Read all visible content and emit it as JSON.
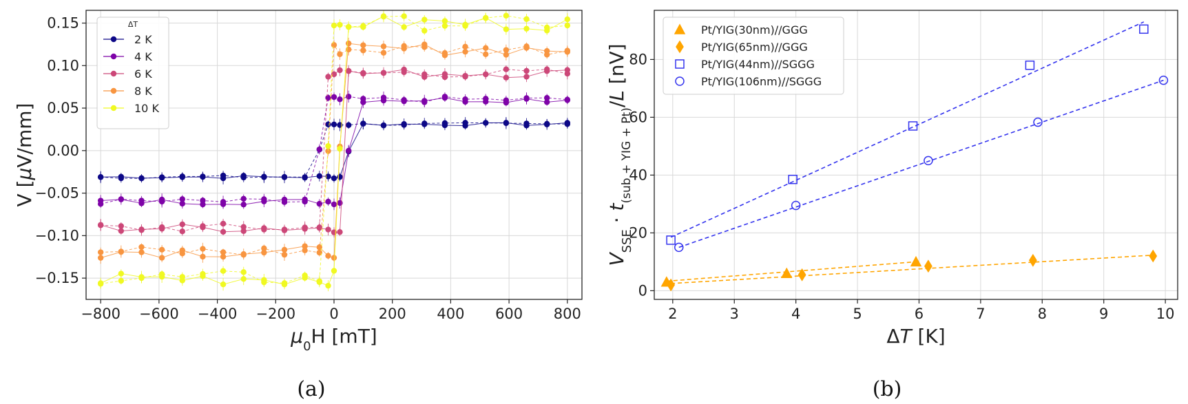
{
  "chart_data": [
    {
      "type": "line",
      "panel": "(a)",
      "xlabel": "μ0H [mT]",
      "ylabel": "V [μV/mm]",
      "xlim": [
        -850,
        850
      ],
      "ylim": [
        -0.175,
        0.165
      ],
      "xticks": [
        -800,
        -600,
        -400,
        -200,
        0,
        200,
        400,
        600,
        800
      ],
      "xtick_labels": [
        "−800",
        "−600",
        "−400",
        "−200",
        "0",
        "200",
        "400",
        "600",
        "800"
      ],
      "yticks": [
        -0.15,
        -0.1,
        -0.05,
        0.0,
        0.05,
        0.1,
        0.15
      ],
      "ytick_labels": [
        "−0.15",
        "−0.10",
        "−0.05",
        "0.00",
        "0.05",
        "0.10",
        "0.15"
      ],
      "grid": true,
      "legend_title": "ΔT",
      "legend_position": "upper-left",
      "x": [
        -800,
        -730,
        -660,
        -590,
        -520,
        -450,
        -380,
        -310,
        -240,
        -170,
        -100,
        -50,
        -20,
        0,
        20,
        50,
        100,
        170,
        240,
        310,
        380,
        450,
        520,
        590,
        660,
        730,
        800
      ],
      "series": [
        {
          "name": "2 K",
          "color": "#0d0887",
          "saturation": 0.031,
          "switch_width": 60
        },
        {
          "name": "4 K",
          "color": "#7e03a8",
          "saturation": 0.06,
          "switch_width": 45
        },
        {
          "name": "6 K",
          "color": "#cc4778",
          "saturation": 0.091,
          "switch_width": 35
        },
        {
          "name": "8 K",
          "color": "#f89540",
          "saturation": 0.119,
          "switch_width": 30
        },
        {
          "name": "10 K",
          "color": "#f0f921",
          "saturation": 0.15,
          "switch_width": 25
        }
      ]
    },
    {
      "type": "scatter",
      "panel": "(b)",
      "xlabel": "ΔT [K]",
      "ylabel": "V_SSE · t_(sub + YIG + Pt) / L [nV]",
      "xlim": [
        1.7,
        10.2
      ],
      "ylim": [
        -3,
        97
      ],
      "xticks": [
        2,
        3,
        4,
        5,
        6,
        7,
        8,
        9,
        10
      ],
      "yticks": [
        0,
        20,
        40,
        60,
        80
      ],
      "grid": true,
      "legend_position": "upper-left",
      "series": [
        {
          "name": "Pt/YIG(30nm)//GGG",
          "marker": "triangle",
          "filled": true,
          "color": "#ffa500",
          "x": [
            1.9,
            3.85,
            5.95
          ],
          "y": [
            3.0,
            6.0,
            10.0
          ],
          "fit": [
            [
              1.9,
              3.3
            ],
            [
              5.95,
              10.0
            ]
          ]
        },
        {
          "name": "Pt/YIG(65nm)//GGG",
          "marker": "diamond",
          "filled": true,
          "color": "#ffa500",
          "x": [
            1.97,
            4.1,
            6.15,
            7.85,
            9.8
          ],
          "y": [
            2.0,
            5.5,
            8.5,
            10.5,
            12.0
          ],
          "fit": [
            [
              1.97,
              2.5
            ],
            [
              9.8,
              12.3
            ]
          ]
        },
        {
          "name": "Pt/YIG(44nm)//SGGG",
          "marker": "square",
          "filled": false,
          "color": "#3333ee",
          "x": [
            1.97,
            3.95,
            5.9,
            7.8,
            9.65
          ],
          "y": [
            17.5,
            38.5,
            57.0,
            78.0,
            90.5
          ],
          "fit": [
            [
              1.97,
              18.5
            ],
            [
              9.65,
              93.0
            ]
          ]
        },
        {
          "name": "Pt/YIG(106nm)//SGGG",
          "marker": "circle",
          "filled": false,
          "color": "#3333ee",
          "x": [
            2.1,
            4.0,
            6.15,
            7.93,
            9.97
          ],
          "y": [
            15.0,
            29.5,
            45.0,
            58.3,
            72.8
          ],
          "fit": [
            [
              2.1,
              15.0
            ],
            [
              9.97,
              72.8
            ]
          ]
        }
      ]
    }
  ],
  "captions": [
    "(a)",
    "(b)"
  ]
}
